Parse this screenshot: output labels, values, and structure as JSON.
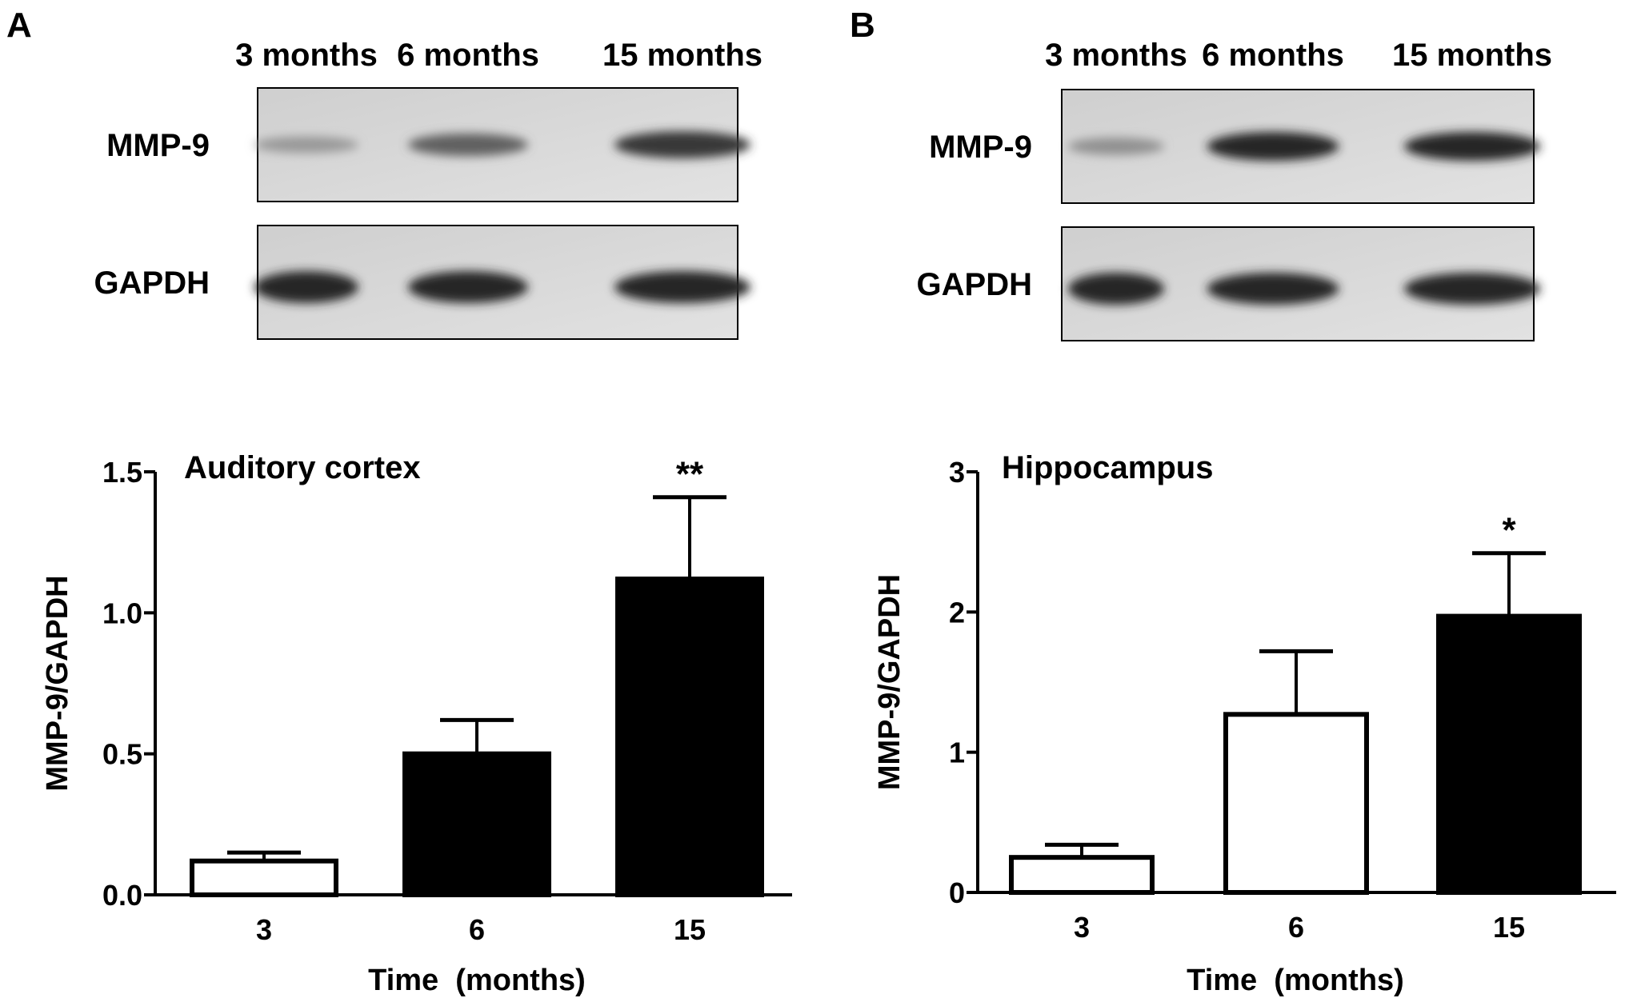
{
  "panels": {
    "a": {
      "letter": "A",
      "blot": {
        "lanes": [
          "3 months",
          "6 months",
          "15 months"
        ],
        "rows": [
          {
            "label": "MMP-9",
            "band_intensity": [
              0.3,
              0.65,
              0.9
            ]
          },
          {
            "label": "GAPDH",
            "band_intensity": [
              1.0,
              1.0,
              1.0
            ]
          }
        ]
      }
    },
    "b": {
      "letter": "B",
      "blot": {
        "lanes": [
          "3 months",
          "6 months",
          "15 months"
        ],
        "rows": [
          {
            "label": "MMP-9",
            "band_intensity": [
              0.35,
              1.0,
              1.0
            ]
          },
          {
            "label": "GAPDH",
            "band_intensity": [
              1.0,
              1.0,
              1.0
            ]
          }
        ]
      }
    }
  },
  "chart_data": [
    {
      "type": "bar",
      "title": "Auditory cortex",
      "xlabel": "Time  (months)",
      "ylabel": "MMP-9/GAPDH",
      "categories": [
        "3",
        "6",
        "15"
      ],
      "values": [
        0.12,
        0.5,
        1.12
      ],
      "errors": [
        0.03,
        0.12,
        0.29
      ],
      "fills": [
        "#ffffff",
        "#000000",
        "#000000"
      ],
      "annotations": [
        "",
        "",
        "**"
      ],
      "ylim": [
        0,
        1.5
      ],
      "yticks": [
        0,
        0.5,
        1.0,
        1.5
      ],
      "ytick_labels": [
        "0.0",
        "0.5",
        "1.0",
        "1.5"
      ]
    },
    {
      "type": "bar",
      "title": "Hippocampus",
      "xlabel": "Time  (months)",
      "ylabel": "MMP-9/GAPDH",
      "categories": [
        "3",
        "6",
        "15"
      ],
      "values": [
        0.25,
        1.27,
        1.97
      ],
      "errors": [
        0.09,
        0.45,
        0.45
      ],
      "fills": [
        "#ffffff",
        "#ffffff",
        "#000000"
      ],
      "annotations": [
        "",
        "",
        "*"
      ],
      "ylim": [
        0,
        3
      ],
      "yticks": [
        0,
        1,
        2,
        3
      ],
      "ytick_labels": [
        "0",
        "1",
        "2",
        "3"
      ]
    }
  ]
}
